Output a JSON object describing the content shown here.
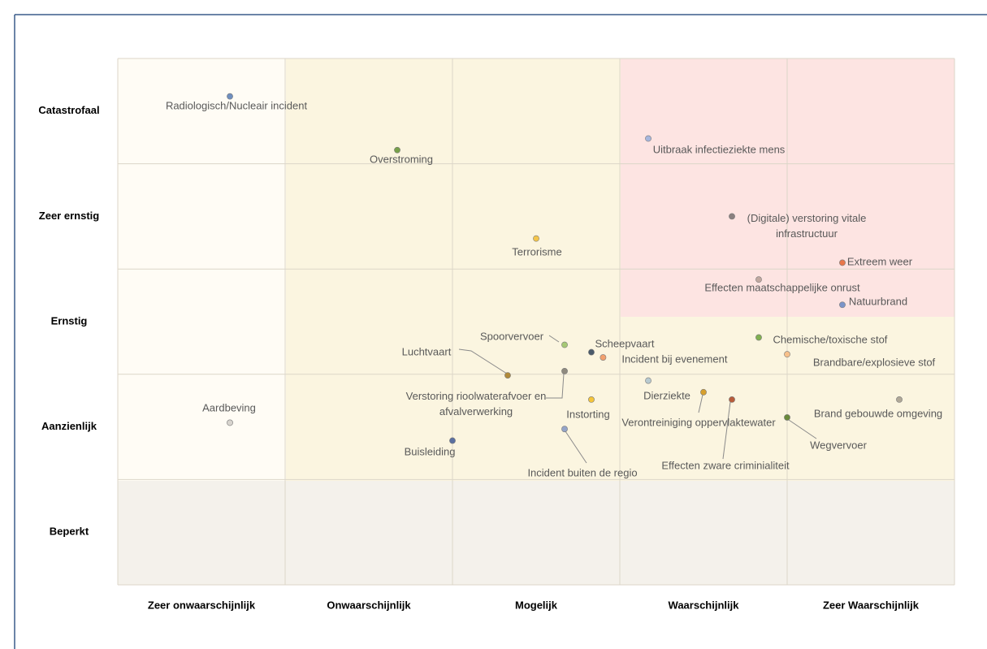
{
  "chart_data": {
    "type": "scatter",
    "x_categories": [
      "Zeer onwaarschijnlijk",
      "Onwaarschijnlijk",
      "Mogelijk",
      "Waarschijnlijk",
      "Zeer Waarschijnlijk"
    ],
    "y_categories": [
      "Beperkt",
      "Aanzienlijk",
      "Ernstig",
      "Zeer ernstig",
      "Catastrofaal"
    ],
    "xlim": [
      0,
      5
    ],
    "ylim": [
      0,
      5
    ],
    "grid": true,
    "points": [
      {
        "label": "Radiologisch/Nucleair incident",
        "x": 0.67,
        "y": 4.64,
        "color": "#6f8fbf"
      },
      {
        "label": "Overstroming",
        "x": 1.67,
        "y": 4.13,
        "color": "#77a04a"
      },
      {
        "label": "Uitbraak infectieziekte mens",
        "x": 3.17,
        "y": 4.24,
        "color": "#a6b6dd"
      },
      {
        "label": "(Digitale) verstoring vitale infrastructuur",
        "x": 3.67,
        "y": 3.5,
        "color": "#8a8080"
      },
      {
        "label": "Terrorisme",
        "x": 2.5,
        "y": 3.29,
        "color": "#f4c54a"
      },
      {
        "label": "Extreem weer",
        "x": 4.33,
        "y": 3.06,
        "color": "#e9774b"
      },
      {
        "label": "Effecten maatschappelijke onrust",
        "x": 3.83,
        "y": 2.9,
        "color": "#c0a8a0"
      },
      {
        "label": "Natuurbrand",
        "x": 4.33,
        "y": 2.66,
        "color": "#7c94c8"
      },
      {
        "label": "Spoorvervoer",
        "x": 2.67,
        "y": 2.28,
        "color": "#a6c874"
      },
      {
        "label": "Scheepvaart",
        "x": 2.83,
        "y": 2.21,
        "color": "#4a5a6a"
      },
      {
        "label": "Incident bij evenement",
        "x": 2.9,
        "y": 2.16,
        "color": "#f2a06e"
      },
      {
        "label": "Chemische/toxische stof",
        "x": 3.83,
        "y": 2.35,
        "color": "#80b050"
      },
      {
        "label": "Brandbare/explosieve stof",
        "x": 4.0,
        "y": 2.19,
        "color": "#f7c08a"
      },
      {
        "label": "Luchtvaart",
        "x": 2.33,
        "y": 1.99,
        "color": "#b08a3a"
      },
      {
        "label": "Verstoring rioolwaterafvoer en afvalverwerking",
        "x": 2.67,
        "y": 2.03,
        "color": "#8f8a7f"
      },
      {
        "label": "Dierziekte",
        "x": 3.17,
        "y": 1.94,
        "color": "#b8cad0"
      },
      {
        "label": "Instorting",
        "x": 2.83,
        "y": 1.76,
        "color": "#f5c53a"
      },
      {
        "label": "Verontreiniging oppervlaktewater",
        "x": 3.5,
        "y": 1.83,
        "color": "#d7a02e"
      },
      {
        "label": "Effecten zware criminialiteit",
        "x": 3.67,
        "y": 1.76,
        "color": "#b85c3a"
      },
      {
        "label": "Brand gebouwde omgeving",
        "x": 4.67,
        "y": 1.76,
        "color": "#b0a898"
      },
      {
        "label": "Wegvervoer",
        "x": 4.0,
        "y": 1.59,
        "color": "#6a8a3a"
      },
      {
        "label": "Aardbeving",
        "x": 0.67,
        "y": 1.54,
        "color": "#d8d4ce"
      },
      {
        "label": "Incident buiten de regio",
        "x": 2.67,
        "y": 1.48,
        "color": "#94a4c8"
      },
      {
        "label": "Buisleiding",
        "x": 2.0,
        "y": 1.37,
        "color": "#5a6fa0"
      }
    ]
  }
}
